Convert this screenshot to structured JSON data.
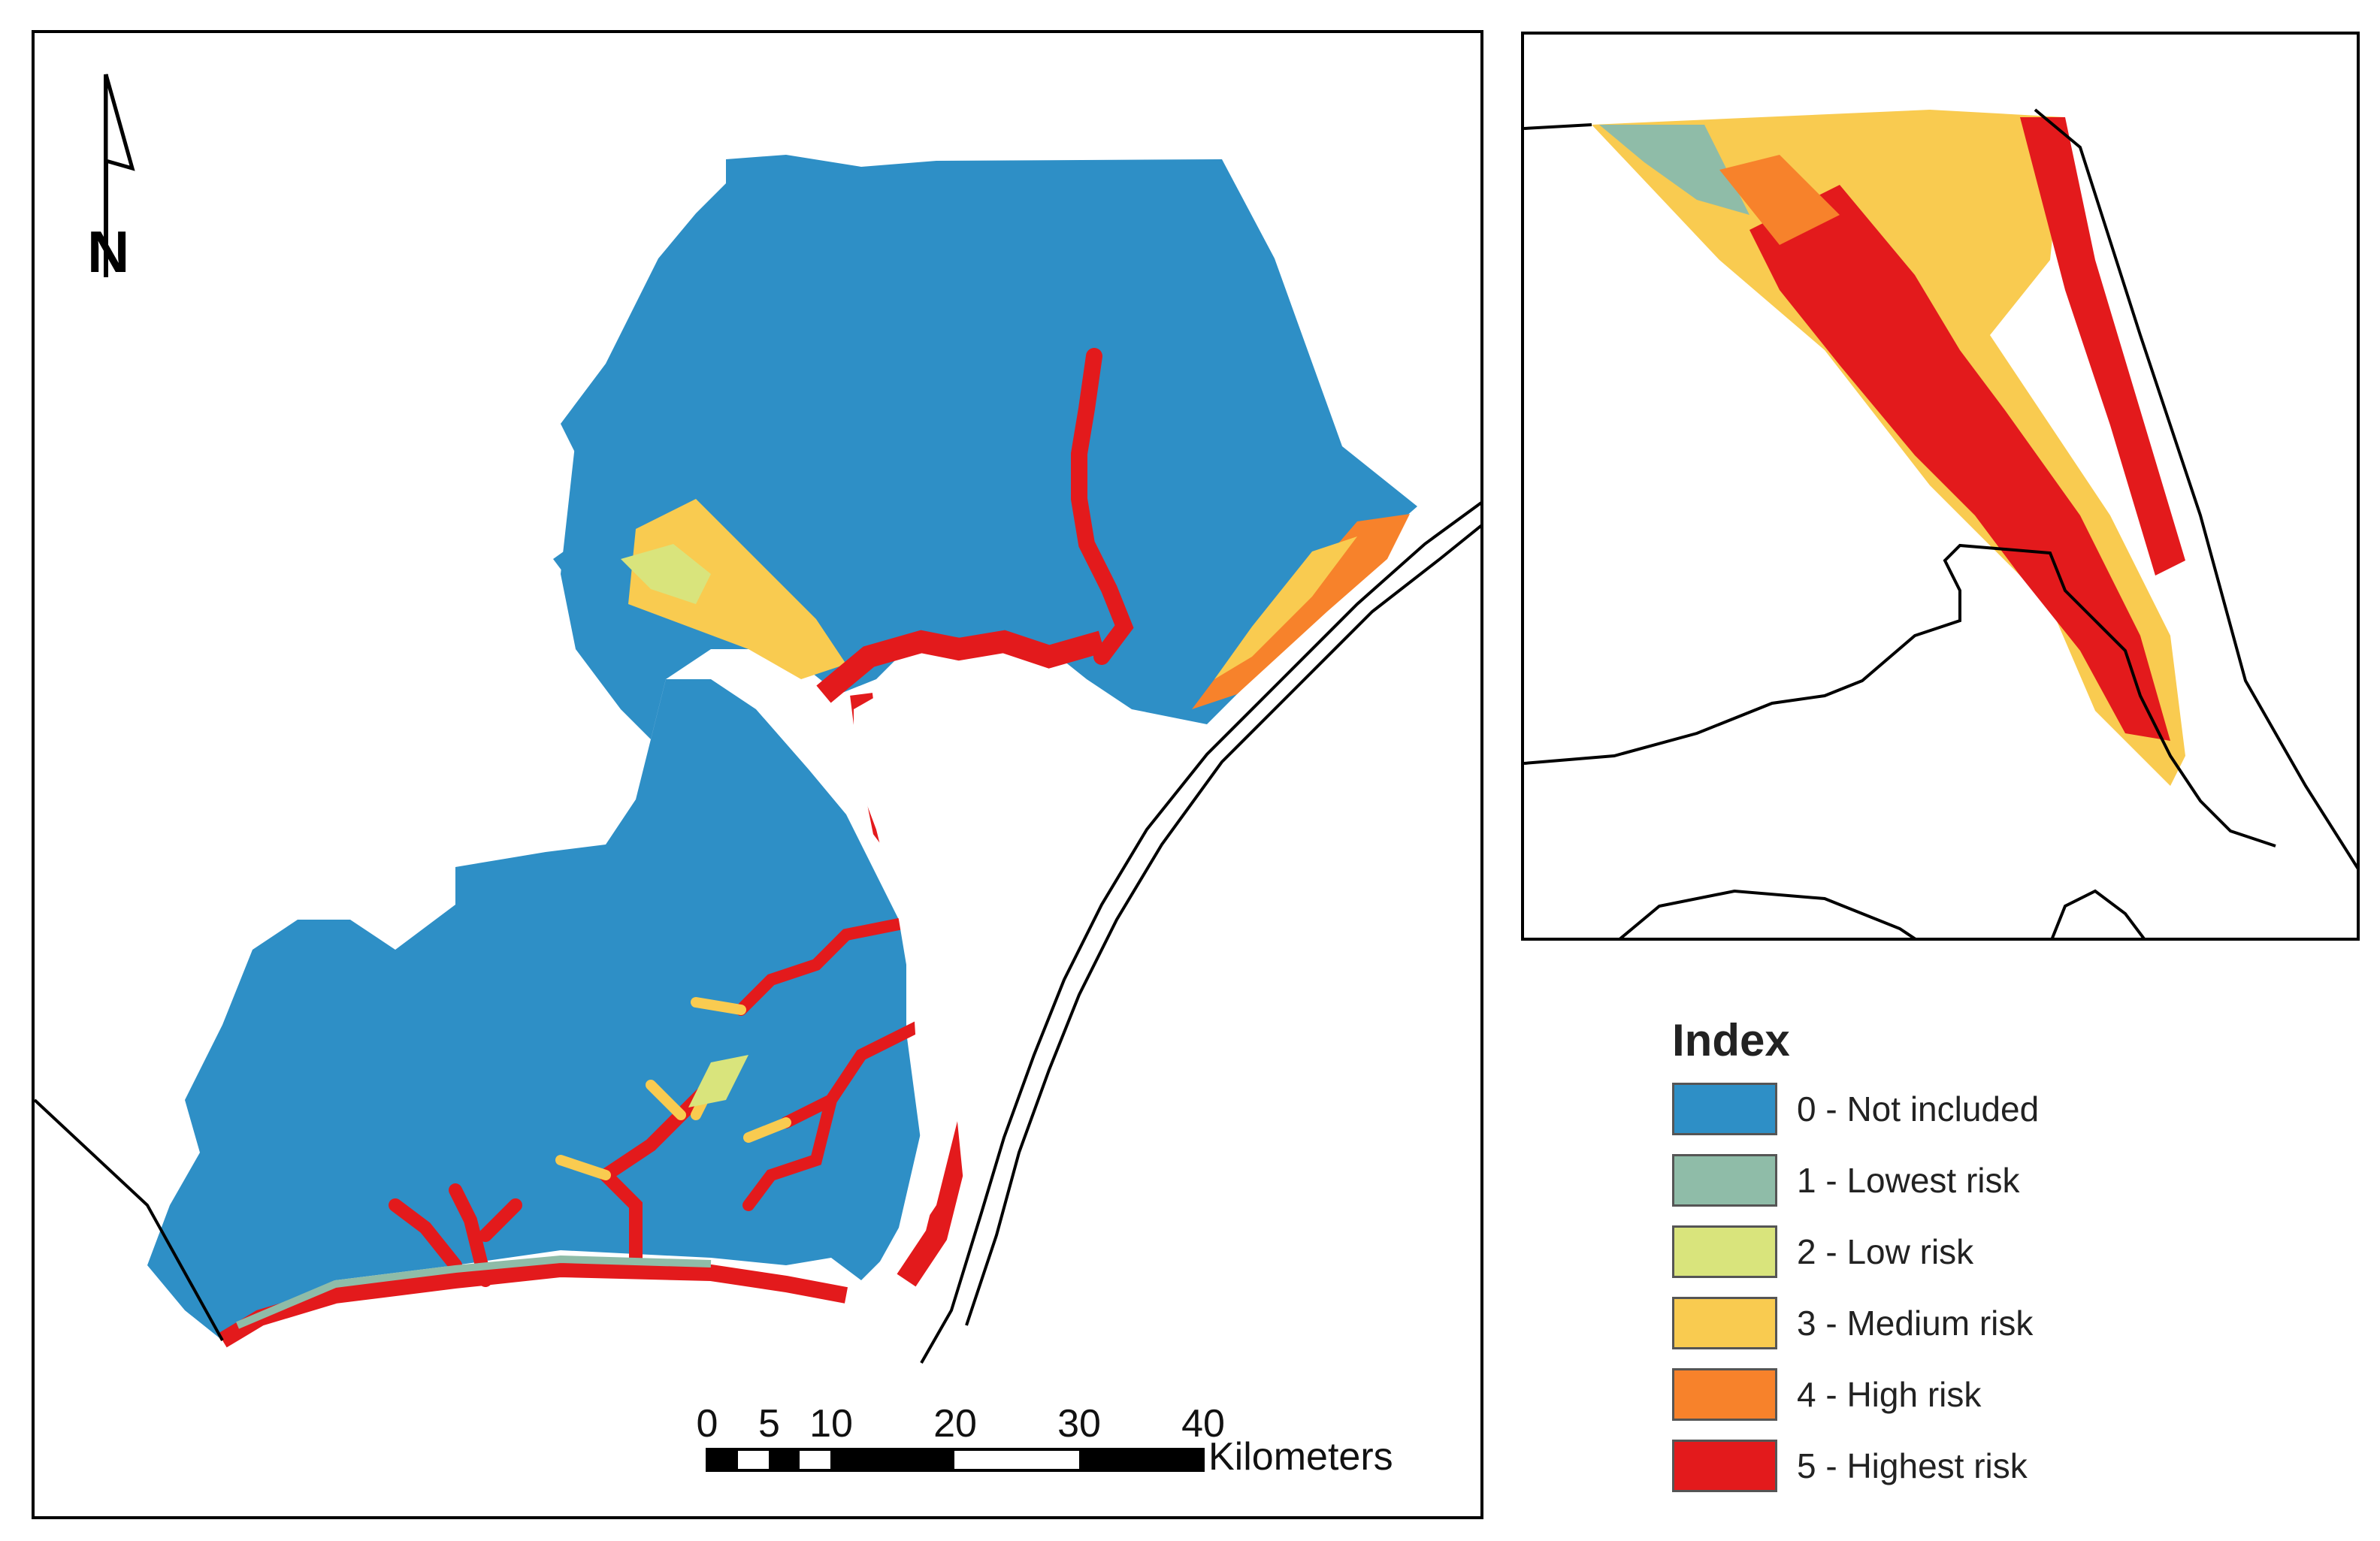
{
  "legend": {
    "title": "Index",
    "items": [
      {
        "label": "0 - Not included",
        "color": "#2e8fc6"
      },
      {
        "label": "1 - Lowest risk",
        "color": "#8fbca8"
      },
      {
        "label": "2 - Low risk",
        "color": "#d9e47c"
      },
      {
        "label": "3 - Medium risk",
        "color": "#f9cb50"
      },
      {
        "label": "4 - High risk",
        "color": "#f7822b"
      },
      {
        "label": "5 - Highest risk",
        "color": "#e31a1c"
      }
    ]
  },
  "scale_bar": {
    "ticks": [
      "0",
      "5",
      "10",
      "20",
      "30",
      "40"
    ],
    "unit": "Kilometers"
  },
  "north_arrow": {
    "letter": "N",
    "icon": "north-arrow-icon"
  }
}
